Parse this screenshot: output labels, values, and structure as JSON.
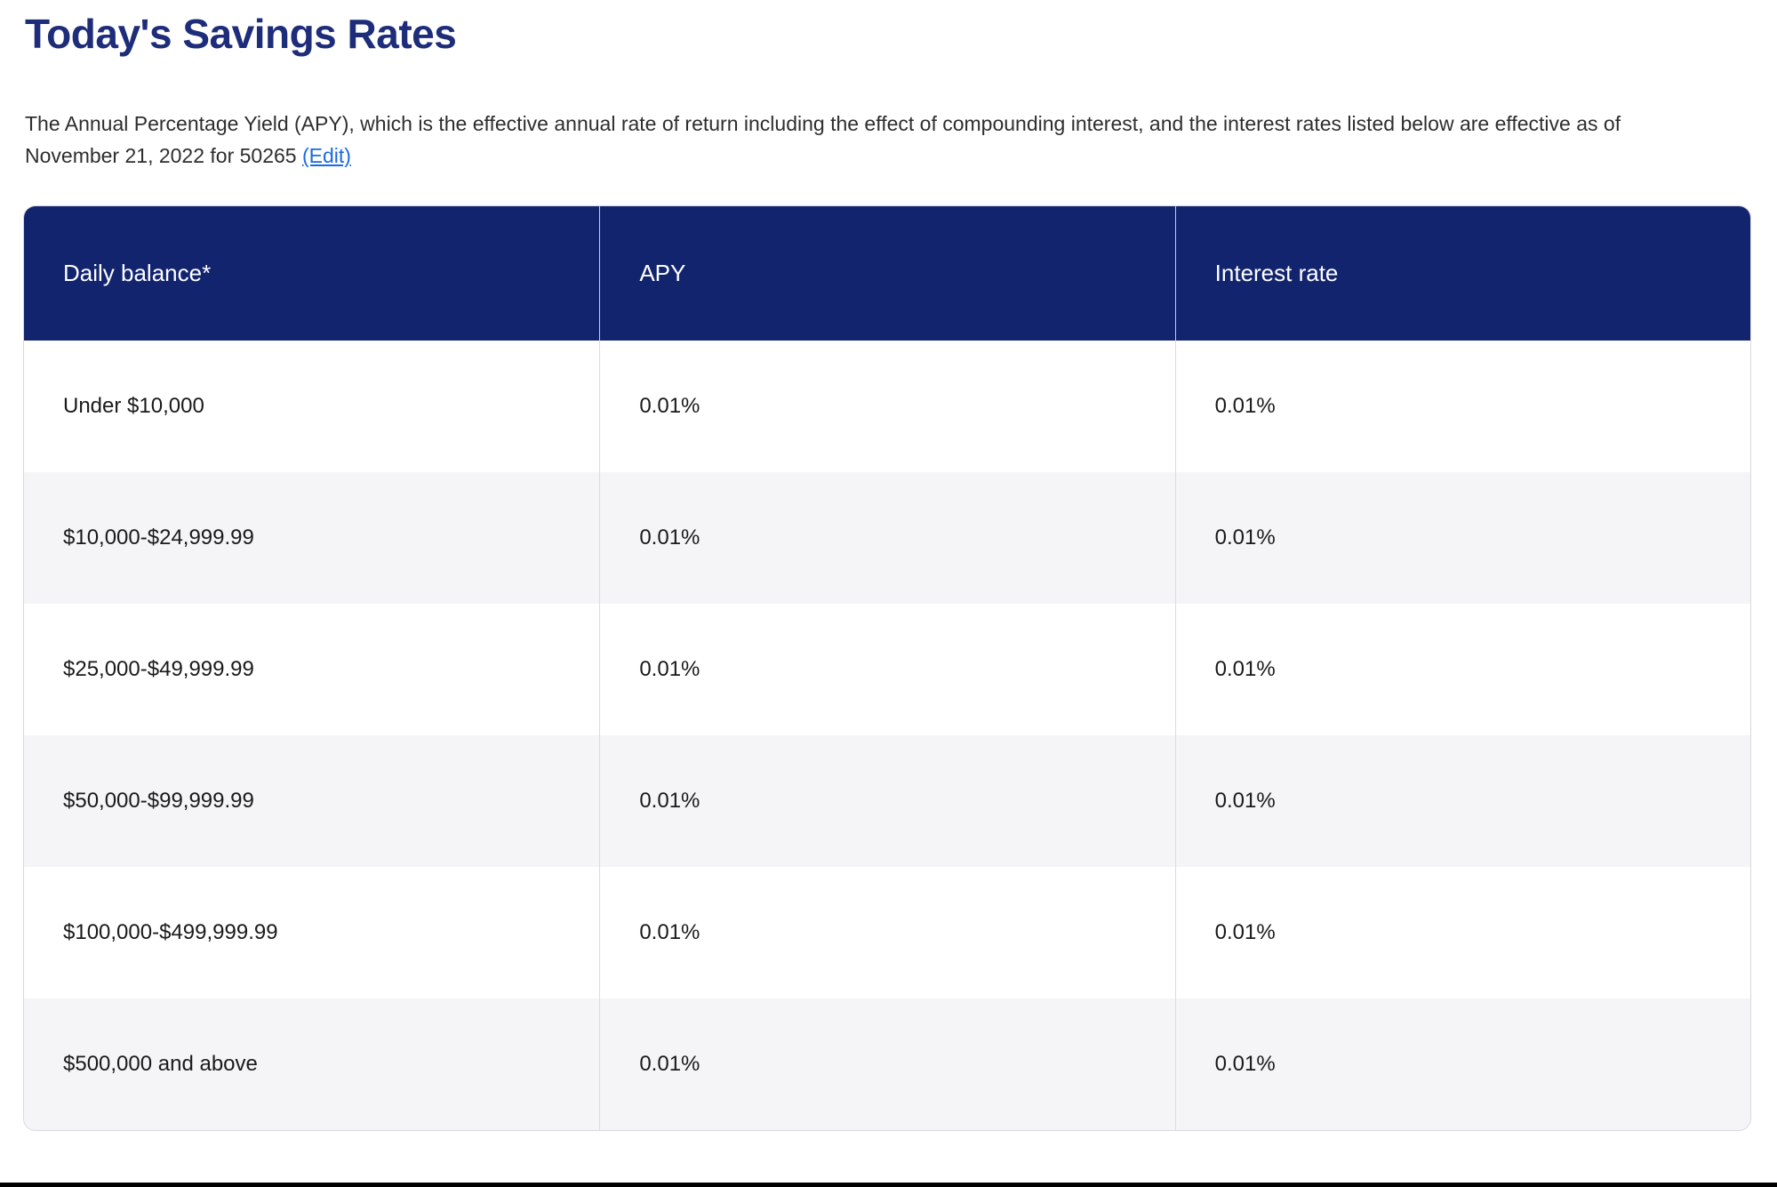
{
  "header": {
    "title": "Today's Savings Rates"
  },
  "intro": {
    "text": "The Annual Percentage Yield (APY), which is the effective annual rate of return including the effect of compounding interest, and the interest rates listed below are effective as of November 21, 2022 for 50265",
    "edit_link_label": "(Edit)"
  },
  "rates_table": {
    "columns": [
      "Daily balance*",
      "APY",
      "Interest rate"
    ],
    "rows": [
      {
        "balance": "Under $10,000",
        "apy": "0.01%",
        "rate": "0.01%"
      },
      {
        "balance": "$10,000-$24,999.99",
        "apy": "0.01%",
        "rate": "0.01%"
      },
      {
        "balance": "$25,000-$49,999.99",
        "apy": "0.01%",
        "rate": "0.01%"
      },
      {
        "balance": "$50,000-$99,999.99",
        "apy": "0.01%",
        "rate": "0.01%"
      },
      {
        "balance": "$100,000-$499,999.99",
        "apy": "0.01%",
        "rate": "0.01%"
      },
      {
        "balance": "$500,000 and above",
        "apy": "0.01%",
        "rate": "0.01%"
      }
    ]
  },
  "colors": {
    "title_navy": "#1e2d7a",
    "header_bg": "#12246e",
    "header_text": "#ffffff",
    "link_blue": "#1b6ae0",
    "row_alt_bg": "#f5f5f7",
    "table_border": "#d8d8de",
    "bottom_bar": "#000000"
  }
}
